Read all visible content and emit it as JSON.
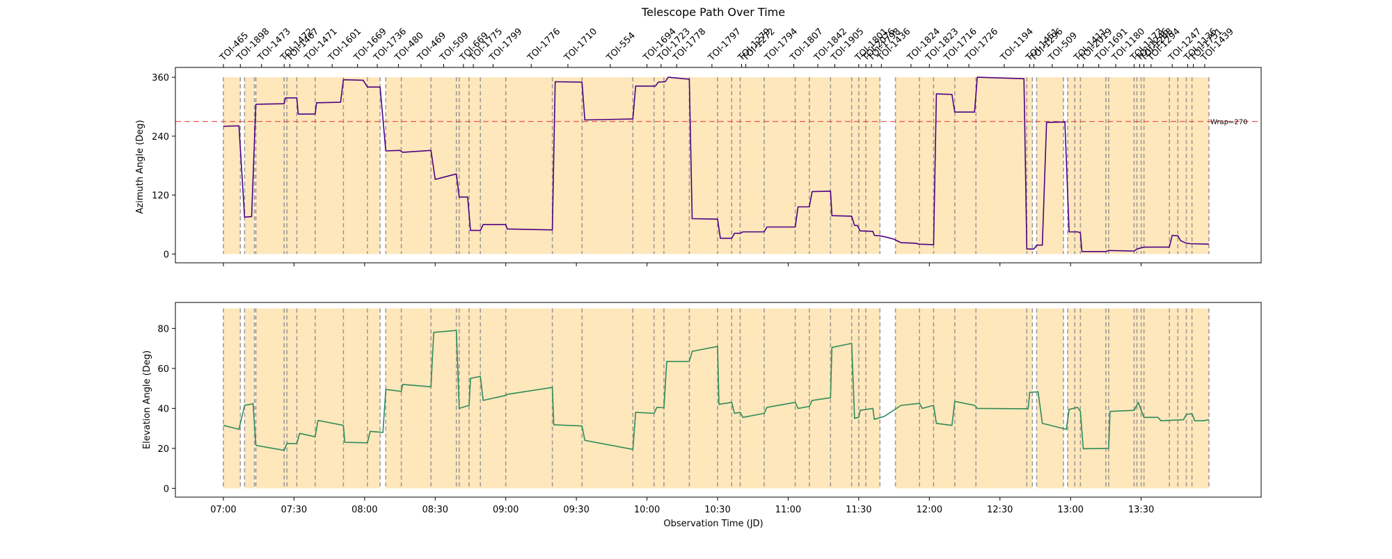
{
  "chart_data": {
    "type": "line",
    "title": "Telescope Path Over Time",
    "xlabel": "Observation Time (JD)",
    "x_tick_labels": [
      "07:00",
      "07:30",
      "08:00",
      "08:30",
      "09:00",
      "09:30",
      "10:00",
      "10:30",
      "11:00",
      "11:30",
      "12:00",
      "12:30",
      "13:00",
      "13:30"
    ],
    "x_tick_hours": [
      7.0,
      7.5,
      8.0,
      8.5,
      9.0,
      9.5,
      10.0,
      10.5,
      11.0,
      11.5,
      12.0,
      12.5,
      13.0,
      13.5
    ],
    "xlim": [
      6.66,
      14.35
    ],
    "colors": {
      "azimuth_line": "#4b0082",
      "elevation_line": "#2e8b57",
      "window_fill": "#ffe4b5",
      "boundary_line": "#8c8c8c",
      "wrap_line": "#e8413a"
    },
    "azimuth": {
      "ylabel": "Azimuth Angle (Deg)",
      "yticks": [
        0,
        120,
        240,
        360
      ],
      "ylim": [
        -18,
        380
      ],
      "wrap_value": 270,
      "wrap_label": "Wrap=270",
      "points": [
        [
          7.0,
          260
        ],
        [
          7.11,
          261
        ],
        [
          7.15,
          75
        ],
        [
          7.2,
          76
        ],
        [
          7.23,
          305
        ],
        [
          7.43,
          306
        ],
        [
          7.44,
          318
        ],
        [
          7.52,
          318
        ],
        [
          7.53,
          285
        ],
        [
          7.65,
          285
        ],
        [
          7.66,
          308
        ],
        [
          7.83,
          309
        ],
        [
          7.85,
          355
        ],
        [
          7.99,
          354
        ],
        [
          8.02,
          340
        ],
        [
          8.11,
          340
        ],
        [
          8.15,
          210
        ],
        [
          8.25,
          211
        ],
        [
          8.27,
          207
        ],
        [
          8.47,
          211
        ],
        [
          8.5,
          152
        ],
        [
          8.65,
          163
        ],
        [
          8.67,
          116
        ],
        [
          8.73,
          116
        ],
        [
          8.75,
          48
        ],
        [
          8.82,
          48
        ],
        [
          8.84,
          60
        ],
        [
          9.0,
          60
        ],
        [
          9.01,
          51
        ],
        [
          9.33,
          49
        ],
        [
          9.35,
          351
        ],
        [
          9.54,
          350
        ],
        [
          9.56,
          273
        ],
        [
          9.9,
          275
        ],
        [
          9.92,
          342
        ],
        [
          10.06,
          342
        ],
        [
          10.08,
          350
        ],
        [
          10.13,
          351
        ],
        [
          10.15,
          360
        ],
        [
          10.3,
          356
        ],
        [
          10.32,
          72
        ],
        [
          10.5,
          71
        ],
        [
          10.52,
          32
        ],
        [
          10.6,
          32
        ],
        [
          10.62,
          42
        ],
        [
          10.66,
          42
        ],
        [
          10.68,
          45
        ],
        [
          10.83,
          45
        ],
        [
          10.85,
          55
        ],
        [
          11.05,
          55
        ],
        [
          11.07,
          96
        ],
        [
          11.15,
          96
        ],
        [
          11.17,
          127
        ],
        [
          11.3,
          128
        ],
        [
          11.31,
          78
        ],
        [
          11.45,
          77
        ],
        [
          11.47,
          58
        ],
        [
          11.49,
          58
        ],
        [
          11.51,
          47
        ],
        [
          11.6,
          46
        ],
        [
          11.61,
          38
        ],
        [
          11.65,
          37
        ],
        [
          11.7,
          34
        ],
        [
          11.75,
          30
        ],
        [
          11.8,
          23
        ],
        [
          11.9,
          22
        ],
        [
          11.93,
          20
        ],
        [
          12.03,
          19
        ],
        [
          12.05,
          326
        ],
        [
          12.16,
          325
        ],
        [
          12.18,
          289
        ],
        [
          12.32,
          289
        ],
        [
          12.34,
          360
        ],
        [
          12.67,
          357
        ],
        [
          12.69,
          10
        ],
        [
          12.74,
          10
        ],
        [
          12.76,
          18
        ],
        [
          12.8,
          18
        ],
        [
          12.83,
          268
        ],
        [
          12.96,
          269
        ],
        [
          12.99,
          45
        ],
        [
          13.05,
          45
        ],
        [
          13.07,
          43
        ],
        [
          13.08,
          5
        ],
        [
          13.25,
          5
        ],
        [
          13.27,
          7
        ],
        [
          13.45,
          6
        ],
        [
          13.47,
          10
        ],
        [
          13.52,
          14
        ],
        [
          13.7,
          14
        ],
        [
          13.72,
          38
        ],
        [
          13.76,
          37
        ],
        [
          13.78,
          27
        ],
        [
          13.82,
          22
        ],
        [
          13.85,
          21
        ],
        [
          13.98,
          20
        ]
      ]
    },
    "elevation": {
      "ylabel": "Elevation Angle (Deg)",
      "yticks": [
        0,
        20,
        40,
        60,
        80
      ],
      "ylim": [
        -4.4,
        93
      ],
      "points": [
        [
          7.0,
          31.5
        ],
        [
          7.11,
          29.5
        ],
        [
          7.15,
          41.5
        ],
        [
          7.21,
          42.3
        ],
        [
          7.23,
          21.5
        ],
        [
          7.43,
          19
        ],
        [
          7.45,
          22.5
        ],
        [
          7.52,
          22.3
        ],
        [
          7.54,
          27.5
        ],
        [
          7.65,
          25.8
        ],
        [
          7.67,
          34
        ],
        [
          7.85,
          31.5
        ],
        [
          7.86,
          23
        ],
        [
          8.02,
          22.8
        ],
        [
          8.04,
          28.5
        ],
        [
          8.13,
          28
        ],
        [
          8.15,
          49.5
        ],
        [
          8.26,
          48.5
        ],
        [
          8.27,
          52
        ],
        [
          8.47,
          50.8
        ],
        [
          8.49,
          78
        ],
        [
          8.65,
          79
        ],
        [
          8.67,
          40
        ],
        [
          8.74,
          41.5
        ],
        [
          8.75,
          55
        ],
        [
          8.82,
          56
        ],
        [
          8.84,
          44
        ],
        [
          9.0,
          46.5
        ],
        [
          9.01,
          47
        ],
        [
          9.33,
          50.5
        ],
        [
          9.34,
          31.8
        ],
        [
          9.54,
          31.2
        ],
        [
          9.56,
          24
        ],
        [
          9.9,
          19.5
        ],
        [
          9.92,
          38
        ],
        [
          10.05,
          37.5
        ],
        [
          10.07,
          40.5
        ],
        [
          10.12,
          40.3
        ],
        [
          10.14,
          63.5
        ],
        [
          10.3,
          63.5
        ],
        [
          10.32,
          68.5
        ],
        [
          10.5,
          71
        ],
        [
          10.51,
          42
        ],
        [
          10.6,
          43
        ],
        [
          10.62,
          37.5
        ],
        [
          10.66,
          38
        ],
        [
          10.68,
          35.5
        ],
        [
          10.83,
          37.5
        ],
        [
          10.85,
          40.5
        ],
        [
          11.05,
          43
        ],
        [
          11.07,
          40
        ],
        [
          11.15,
          41
        ],
        [
          11.17,
          44
        ],
        [
          11.3,
          45.3
        ],
        [
          11.31,
          70.5
        ],
        [
          11.45,
          72.5
        ],
        [
          11.47,
          35
        ],
        [
          11.5,
          35.5
        ],
        [
          11.51,
          39
        ],
        [
          11.6,
          40
        ],
        [
          11.61,
          34.5
        ],
        [
          11.68,
          36
        ],
        [
          11.8,
          41.5
        ],
        [
          11.93,
          42.5
        ],
        [
          11.95,
          40
        ],
        [
          12.03,
          41.5
        ],
        [
          12.05,
          32.5
        ],
        [
          12.16,
          31.5
        ],
        [
          12.18,
          43.5
        ],
        [
          12.32,
          41.5
        ],
        [
          12.34,
          40
        ],
        [
          12.7,
          39.8
        ],
        [
          12.71,
          48
        ],
        [
          12.77,
          48.3
        ],
        [
          12.8,
          32.5
        ],
        [
          12.97,
          29.5
        ],
        [
          12.99,
          39.5
        ],
        [
          13.05,
          40.5
        ],
        [
          13.07,
          38.5
        ],
        [
          13.09,
          19.8
        ],
        [
          13.27,
          20
        ],
        [
          13.28,
          38.5
        ],
        [
          13.45,
          39
        ],
        [
          13.48,
          43
        ],
        [
          13.5,
          39
        ],
        [
          13.52,
          35.5
        ],
        [
          13.62,
          35.5
        ],
        [
          13.64,
          33.8
        ],
        [
          13.8,
          34.3
        ],
        [
          13.82,
          37
        ],
        [
          13.86,
          37.3
        ],
        [
          13.88,
          33.8
        ],
        [
          13.94,
          33.8
        ],
        [
          13.98,
          34.3
        ]
      ]
    },
    "observation_windows": [
      [
        7.0,
        7.12
      ],
      [
        7.15,
        7.22
      ],
      [
        7.23,
        8.11
      ],
      [
        8.15,
        11.65
      ],
      [
        11.76,
        12.73
      ],
      [
        12.76,
        12.95
      ],
      [
        12.98,
        13.98
      ]
    ],
    "target_boundaries": [
      7.0,
      7.12,
      7.15,
      7.22,
      7.23,
      7.43,
      7.45,
      7.52,
      7.65,
      7.85,
      8.02,
      8.11,
      8.15,
      8.26,
      8.47,
      8.65,
      8.67,
      8.74,
      8.82,
      9.0,
      9.33,
      9.54,
      9.9,
      10.05,
      10.12,
      10.3,
      10.5,
      10.6,
      10.66,
      10.83,
      11.05,
      11.15,
      11.3,
      11.45,
      11.5,
      11.55,
      11.65,
      11.76,
      11.93,
      12.03,
      12.18,
      12.33,
      12.69,
      12.73,
      12.76,
      12.95,
      12.98,
      13.03,
      13.07,
      13.25,
      13.27,
      13.45,
      13.47,
      13.5,
      13.52,
      13.7,
      13.76,
      13.82,
      13.86,
      13.98
    ],
    "target_labels": [
      {
        "name": "TOI-465",
        "x": 7.0
      },
      {
        "name": "TOI-1898",
        "x": 7.12
      },
      {
        "name": "TOI-1473",
        "x": 7.27
      },
      {
        "name": "TOI-1472",
        "x": 7.43
      },
      {
        "name": "TOI-1467",
        "x": 7.47
      },
      {
        "name": "TOI-1471",
        "x": 7.6
      },
      {
        "name": "TOI-1601",
        "x": 7.77
      },
      {
        "name": "TOI-1669",
        "x": 7.95
      },
      {
        "name": "TOI-1736",
        "x": 8.09
      },
      {
        "name": "TOI-480",
        "x": 8.24
      },
      {
        "name": "TOI-469",
        "x": 8.4
      },
      {
        "name": "TOI-509",
        "x": 8.56
      },
      {
        "name": "TOI-669",
        "x": 8.7
      },
      {
        "name": "TOI-1775",
        "x": 8.77
      },
      {
        "name": "TOI-1799",
        "x": 8.91
      },
      {
        "name": "TOI-1776",
        "x": 9.18
      },
      {
        "name": "TOI-1710",
        "x": 9.44
      },
      {
        "name": "TOI-554",
        "x": 9.74
      },
      {
        "name": "TOI-1694",
        "x": 10.0
      },
      {
        "name": "TOI-1723",
        "x": 10.1
      },
      {
        "name": "TOI-1778",
        "x": 10.21
      },
      {
        "name": "TOI-1797",
        "x": 10.46
      },
      {
        "name": "TOI-1279",
        "x": 10.67
      },
      {
        "name": "TOI-1272",
        "x": 10.7
      },
      {
        "name": "TOI-1794",
        "x": 10.86
      },
      {
        "name": "TOI-1807",
        "x": 11.04
      },
      {
        "name": "TOI-1842",
        "x": 11.21
      },
      {
        "name": "TOI-1905",
        "x": 11.33
      },
      {
        "name": "TOI-1801",
        "x": 11.5
      },
      {
        "name": "TOI-2076",
        "x": 11.55
      },
      {
        "name": "TOI-1798",
        "x": 11.59
      },
      {
        "name": "TOI-1436",
        "x": 11.66
      },
      {
        "name": "TOI-1824",
        "x": 11.87
      },
      {
        "name": "TOI-1823",
        "x": 12.0
      },
      {
        "name": "TOI-1716",
        "x": 12.13
      },
      {
        "name": "TOI-1726",
        "x": 12.28
      },
      {
        "name": "TOI-1194",
        "x": 12.53
      },
      {
        "name": "TOI-1451",
        "x": 12.71
      },
      {
        "name": "TOI-1296",
        "x": 12.74
      },
      {
        "name": "TOI-509",
        "x": 12.87
      },
      {
        "name": "TOI-1411",
        "x": 13.05
      },
      {
        "name": "TOI-2019",
        "x": 13.09
      },
      {
        "name": "TOI-1691",
        "x": 13.2
      },
      {
        "name": "TOI-1180",
        "x": 13.32
      },
      {
        "name": "TOI-1173",
        "x": 13.45
      },
      {
        "name": "TOI-1246",
        "x": 13.49
      },
      {
        "name": "TOI-1248",
        "x": 13.52
      },
      {
        "name": "TOI-1294",
        "x": 13.57
      },
      {
        "name": "TOI-1247",
        "x": 13.72
      },
      {
        "name": "TOI-1136",
        "x": 13.83
      },
      {
        "name": "TOI-1751",
        "x": 13.87
      },
      {
        "name": "TOI-1439",
        "x": 13.95
      }
    ]
  }
}
